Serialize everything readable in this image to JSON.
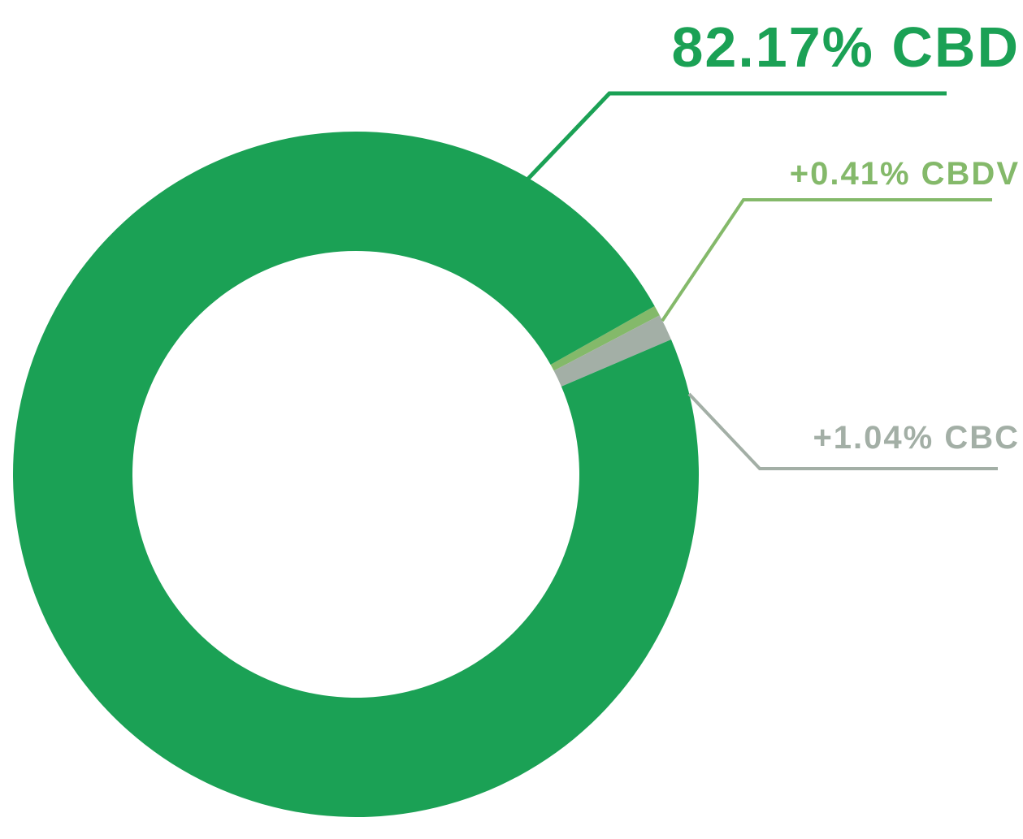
{
  "chart_data": {
    "type": "donut",
    "values": [
      82.17,
      0.41,
      1.04
    ],
    "value_labels": [
      "82.17% CBD",
      "+0.41% CBDV",
      "+1.04% CBC"
    ],
    "colors": [
      "#1ba155",
      "#84b96a",
      "#a3afa6"
    ]
  }
}
